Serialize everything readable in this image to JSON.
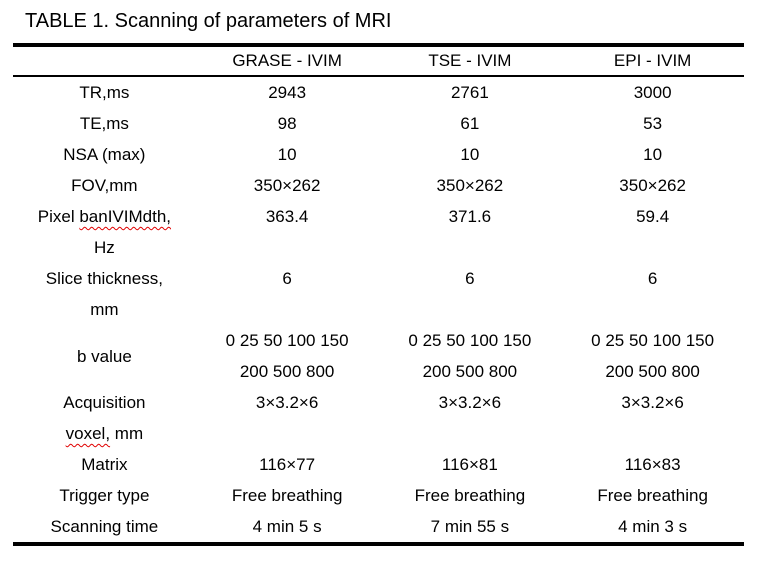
{
  "title": "TABLE 1. Scanning of parameters of MRI",
  "colors": {
    "text": "#000000",
    "border": "#000000",
    "background": "#ffffff",
    "spellcheck_underline": "#e00000"
  },
  "table": {
    "columns": [
      "",
      "GRASE - IVIM",
      "TSE - IVIM",
      "EPI - IVIM"
    ],
    "rows": [
      {
        "label": "TR,ms",
        "values": [
          "2943",
          "2761",
          "3000"
        ]
      },
      {
        "label": "TE,ms",
        "values": [
          "98",
          "61",
          "53"
        ]
      },
      {
        "label": "NSA (max)",
        "values": [
          "10",
          "10",
          "10"
        ]
      },
      {
        "label": "FOV,mm",
        "values": [
          "350×262",
          "350×262",
          "350×262"
        ]
      },
      {
        "label_pre": "Pixel ",
        "label_sq": "banIVIMdth,",
        "label_line2": "Hz",
        "values": [
          "363.4",
          "371.6",
          "59.4"
        ]
      },
      {
        "label": "Slice thickness,\nmm",
        "values": [
          "6",
          "6",
          "6"
        ]
      },
      {
        "label": "b value",
        "values": [
          "0 25 50 100 150\n200 500 800",
          "0 25 50 100 150\n200 500 800",
          "0 25 50 100 150\n200 500 800"
        ]
      },
      {
        "label_line1": "Acquisition",
        "label_sq": "voxel,",
        "label_rest": " mm",
        "values": [
          "3×3.2×6",
          "3×3.2×6",
          "3×3.2×6"
        ]
      },
      {
        "label": "Matrix",
        "values": [
          "116×77",
          "116×81",
          "116×83"
        ]
      },
      {
        "label": "Trigger type",
        "values": [
          "Free breathing",
          "Free breathing",
          "Free breathing"
        ]
      },
      {
        "label": "Scanning time",
        "values": [
          "4 min 5 s",
          "7 min 55 s",
          "4 min 3 s"
        ]
      }
    ]
  }
}
